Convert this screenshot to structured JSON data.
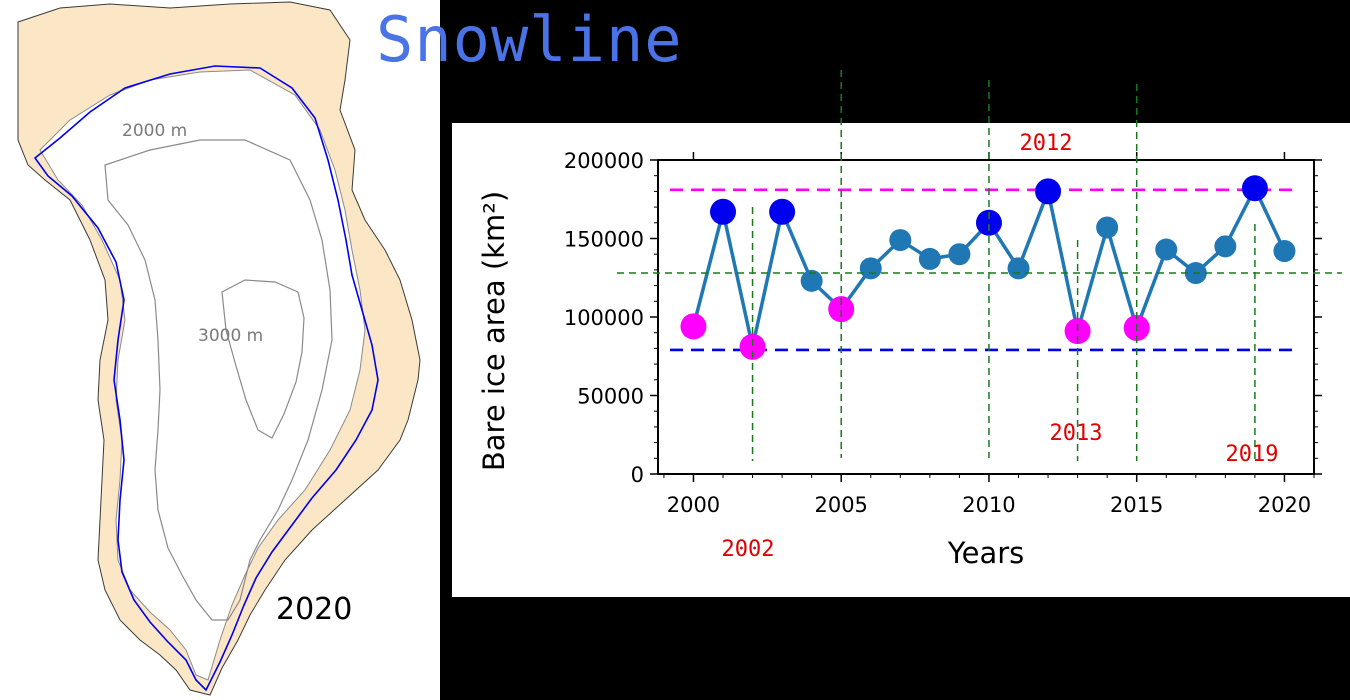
{
  "title": "Snowline",
  "map": {
    "year_label": "2020",
    "contour_labels": [
      "2000 m",
      "3000 m"
    ],
    "colors": {
      "land": "#fbe7c6",
      "snowline": "#0000ee",
      "contour": "#8a8a8a",
      "coast": "#3a3a3a"
    }
  },
  "chart_data": {
    "type": "line",
    "xlabel": "Years",
    "ylabel": "Bare ice area (km²)",
    "xlim": [
      1998.8,
      2021.0
    ],
    "ylim": [
      0,
      200000
    ],
    "xticks": [
      2000,
      2005,
      2010,
      2015,
      2020
    ],
    "yticks": [
      0,
      50000,
      100000,
      150000,
      200000
    ],
    "series": [
      {
        "color": "#1f77b4",
        "x": [
          2000,
          2001,
          2002,
          2003,
          2004,
          2005,
          2006,
          2007,
          2008,
          2009,
          2010,
          2011,
          2012,
          2013,
          2014,
          2015,
          2016,
          2017,
          2018,
          2019,
          2020
        ],
        "values": [
          94000,
          167000,
          81000,
          167000,
          123000,
          105000,
          131000,
          149000,
          137000,
          140000,
          160000,
          131000,
          180000,
          91000,
          157000,
          93000,
          143000,
          128000,
          145000,
          182000,
          142000
        ]
      }
    ],
    "highlight_high": {
      "color": "#0000ee",
      "years": [
        2001,
        2003,
        2010,
        2012,
        2019
      ]
    },
    "highlight_low": {
      "color": "#ff00ff",
      "years": [
        2000,
        2002,
        2005,
        2013,
        2015
      ]
    },
    "reference_lines": [
      {
        "y": 181000,
        "color": "#ff00ff",
        "style": "dashed"
      },
      {
        "y": 128000,
        "color": "#1a7a1a",
        "style": "dashed"
      },
      {
        "y": 79000,
        "color": "#0000ee",
        "style": "dashed"
      }
    ],
    "year_markers": {
      "color": "#1a7a1a",
      "years": [
        2002,
        2005,
        2010,
        2013,
        2015,
        2019
      ]
    },
    "annotations": [
      "2012",
      "2002",
      "2013",
      "2019"
    ],
    "annotation_color": "#e00000",
    "grid": false
  }
}
